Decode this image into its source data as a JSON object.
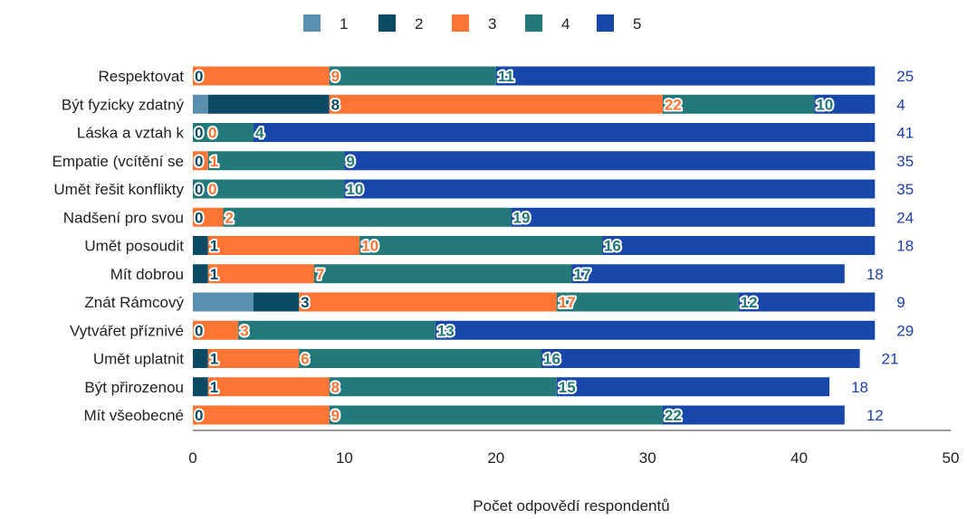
{
  "chart_data": {
    "type": "bar",
    "orientation": "horizontal",
    "stacked": true,
    "title": "",
    "xlabel": "Počet odpovědí respondentů",
    "ylabel": "",
    "xlim": [
      0,
      50
    ],
    "x_ticks": [
      "0",
      "10",
      "20",
      "30",
      "40",
      "50"
    ],
    "grid": false,
    "legend_position": "top",
    "categories": [
      "Respektovat",
      "Být fyzicky zdatný",
      "Láska a vztah k",
      "Empatie (vcítění se",
      "Umět řešit konflikty",
      "Nadšení pro svou",
      "Umět posoudit",
      "Mít dobrou",
      "Znát Rámcový",
      "Vytvářet příznivé",
      "Umět uplatnit",
      "Být přirozenou",
      "Mít všeobecné"
    ],
    "series": [
      {
        "name": "1",
        "color": "#5b8fb0",
        "values": [
          0,
          1,
          0,
          0,
          0,
          0,
          0,
          0,
          4,
          0,
          0,
          0,
          0
        ]
      },
      {
        "name": "2",
        "color": "#0b4a64",
        "values": [
          0,
          8,
          0,
          0,
          0,
          0,
          1,
          1,
          3,
          0,
          1,
          1,
          0
        ]
      },
      {
        "name": "3",
        "color": "#ff7634",
        "values": [
          9,
          22,
          0,
          1,
          0,
          2,
          10,
          7,
          17,
          3,
          6,
          8,
          9
        ]
      },
      {
        "name": "4",
        "color": "#23797a",
        "values": [
          11,
          10,
          4,
          9,
          10,
          19,
          16,
          17,
          12,
          13,
          16,
          15,
          22
        ]
      },
      {
        "name": "5",
        "color": "#1747aa",
        "values": [
          25,
          4,
          41,
          35,
          35,
          24,
          18,
          18,
          9,
          29,
          21,
          18,
          12
        ]
      }
    ]
  }
}
